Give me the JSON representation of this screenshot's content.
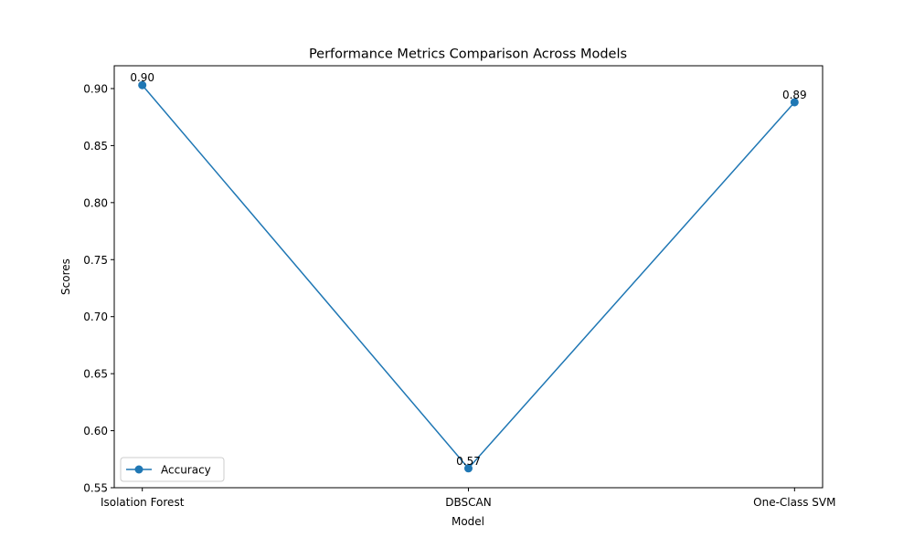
{
  "chart_data": {
    "type": "line",
    "title": "Performance Metrics Comparison Across Models",
    "xlabel": "Model",
    "ylabel": "Scores",
    "categories": [
      "Isolation Forest",
      "DBSCAN",
      "One-Class SVM"
    ],
    "series": [
      {
        "name": "Accuracy",
        "values": [
          0.903,
          0.567,
          0.888
        ],
        "data_labels": [
          "0.90",
          "0.57",
          "0.89"
        ],
        "color": "#1f77b4",
        "marker": "circle"
      }
    ],
    "ylim": [
      0.55,
      0.92
    ],
    "yticks": [
      0.55,
      0.6,
      0.65,
      0.7,
      0.75,
      0.8,
      0.85,
      0.9
    ],
    "ytick_labels": [
      "0.55",
      "0.60",
      "0.65",
      "0.70",
      "0.75",
      "0.80",
      "0.85",
      "0.90"
    ],
    "grid": false,
    "legend_position": "lower-left"
  }
}
